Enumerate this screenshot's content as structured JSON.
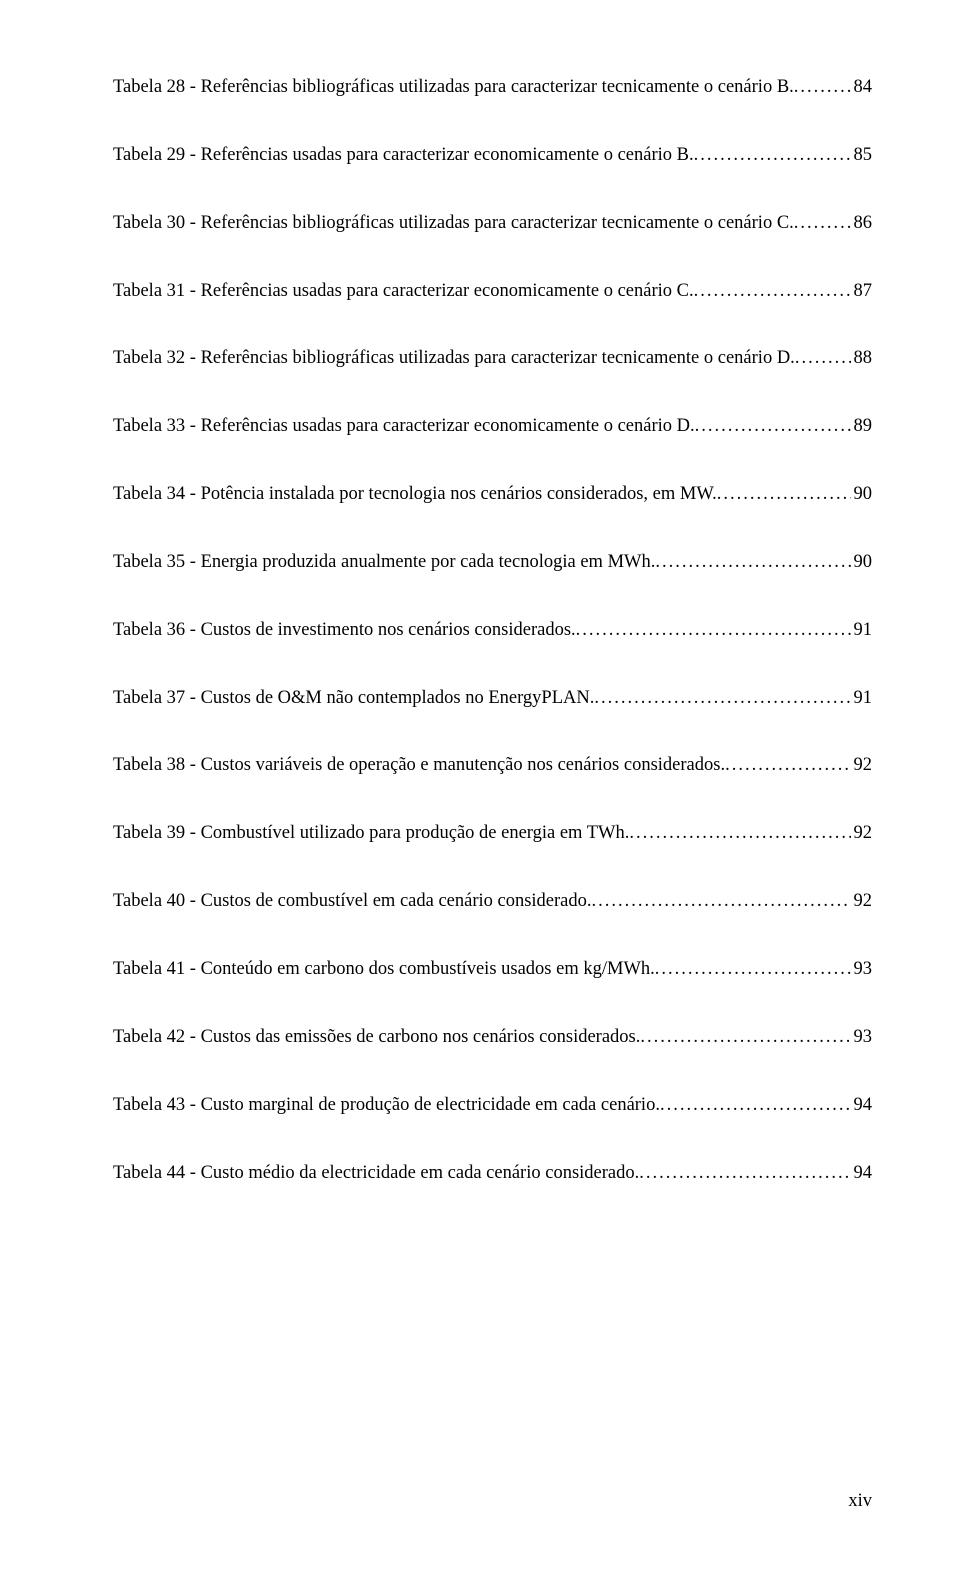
{
  "entries": [
    {
      "text": "Tabela 28 - Referências bibliográficas utilizadas para caracterizar tecnicamente o cenário B.",
      "page": "84",
      "wrap": false
    },
    {
      "text": "Tabela 29 - Referências usadas para caracterizar economicamente o cenário B.",
      "page": "85",
      "wrap": false
    },
    {
      "text": "Tabela 30 - Referências bibliográficas utilizadas para caracterizar tecnicamente o cenário C.",
      "page": "86",
      "wrap": false
    },
    {
      "text": "Tabela 31 - Referências usadas para caracterizar economicamente o cenário C.",
      "page": "87",
      "wrap": false
    },
    {
      "text": "Tabela 32 - Referências bibliográficas utilizadas para caracterizar tecnicamente o cenário D.",
      "page": "88",
      "wrap": false
    },
    {
      "text": "Tabela 33 - Referências usadas para caracterizar economicamente o cenário D.",
      "page": "89",
      "wrap": false
    },
    {
      "text": "Tabela 34 - Potência instalada por tecnologia nos cenários considerados, em MW.",
      "page": "90",
      "wrap": false
    },
    {
      "text": "Tabela 35 - Energia produzida anualmente por cada tecnologia em MWh.",
      "page": "90",
      "wrap": false
    },
    {
      "text": "Tabela 36 - Custos de investimento nos cenários considerados.",
      "page": "91",
      "wrap": false
    },
    {
      "text": "Tabela 37 - Custos de O&M não contemplados no EnergyPLAN.",
      "page": "91",
      "wrap": false
    },
    {
      "text": "Tabela 38 - Custos variáveis de operação e manutenção nos cenários considerados.",
      "page": "92",
      "wrap": false
    },
    {
      "text": "Tabela 39 - Combustível utilizado para produção de energia em TWh.",
      "page": "92",
      "wrap": false
    },
    {
      "text": "Tabela 40 - Custos de combustível em cada cenário considerado.",
      "page": "92",
      "wrap": false
    },
    {
      "text": "Tabela 41 - Conteúdo em carbono dos combustíveis usados em kg/MWh.",
      "page": "93",
      "wrap": false
    },
    {
      "text": "Tabela 42 - Custos das emissões de carbono nos cenários considerados.",
      "page": "93",
      "wrap": false
    },
    {
      "text": "Tabela 43 - Custo marginal de produção de electricidade em cada cenário.",
      "page": "94",
      "wrap": false
    },
    {
      "text": "Tabela 44 - Custo médio da electricidade em cada cenário considerado.",
      "page": "94",
      "wrap": false
    }
  ],
  "footer": "xiv"
}
